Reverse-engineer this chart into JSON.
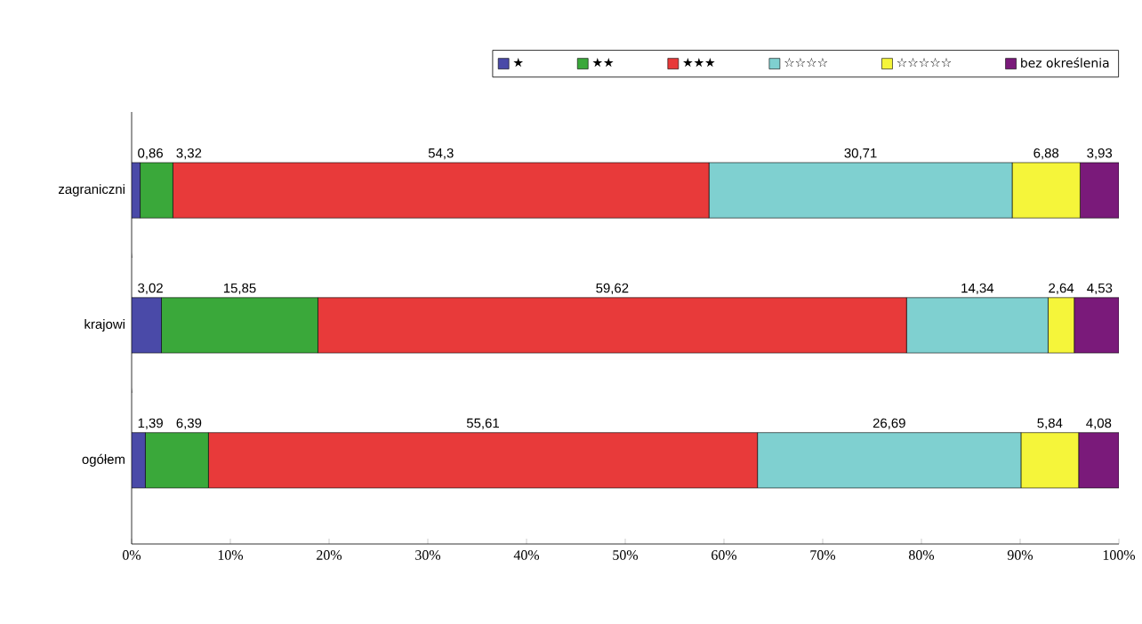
{
  "chart_data": {
    "type": "bar",
    "orientation": "horizontal",
    "stacked": true,
    "categories": [
      "zagraniczni",
      "krajowi",
      "ogółem"
    ],
    "series": [
      {
        "name": "★",
        "color": "#4a4aa8",
        "values": [
          0.86,
          3.02,
          1.39
        ],
        "value_labels": [
          "0,86",
          "3,02",
          "1,39"
        ]
      },
      {
        "name": "★★",
        "color": "#3aa83a",
        "values": [
          3.32,
          15.85,
          6.39
        ],
        "value_labels": [
          "3,32",
          "15,85",
          "6,39"
        ]
      },
      {
        "name": "★★★",
        "color": "#e83a3a",
        "values": [
          54.3,
          59.62,
          55.61
        ],
        "value_labels": [
          "54,3",
          "59,62",
          "55,61"
        ]
      },
      {
        "name": "☆☆☆☆",
        "color": "#7fd0d0",
        "values": [
          30.71,
          14.34,
          26.69
        ],
        "value_labels": [
          "30,71",
          "14,34",
          "26,69"
        ]
      },
      {
        "name": "☆☆☆☆☆",
        "color": "#f5f53a",
        "values": [
          6.88,
          2.64,
          5.84
        ],
        "value_labels": [
          "6,88",
          "2,64",
          "5,84"
        ]
      },
      {
        "name": "bez określenia",
        "color": "#7a1a7a",
        "values": [
          3.93,
          4.53,
          4.08
        ],
        "value_labels": [
          "3,93",
          "4,53",
          "4,08"
        ]
      }
    ],
    "xlim": [
      0,
      100
    ],
    "xticks": [
      {
        "value": 0,
        "label": "0%"
      },
      {
        "value": 10,
        "label": "10%"
      },
      {
        "value": 20,
        "label": "20%"
      },
      {
        "value": 30,
        "label": "30%"
      },
      {
        "value": 40,
        "label": "40%"
      },
      {
        "value": 50,
        "label": "50%"
      },
      {
        "value": 60,
        "label": "60%"
      },
      {
        "value": 70,
        "label": "70%"
      },
      {
        "value": 80,
        "label": "80%"
      },
      {
        "value": 90,
        "label": "90%"
      },
      {
        "value": 100,
        "label": "100%"
      }
    ],
    "legend": "top"
  }
}
